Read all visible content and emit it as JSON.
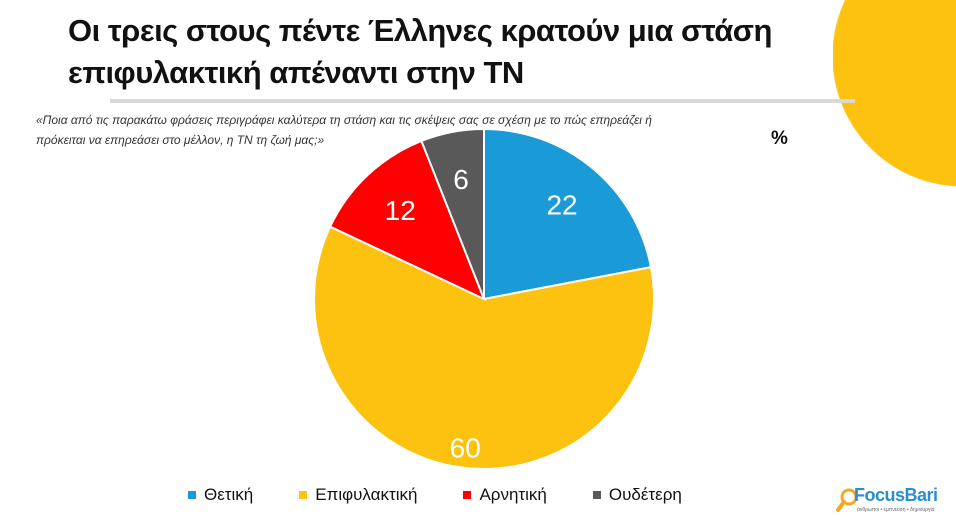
{
  "title_line1": "Οι τρεις στους πέντε Έλληνες κρατούν μια στάση",
  "title_line2": "επιφυλακτική απέναντι στην ΤΝ",
  "question_line1": "«Ποια από τις παρακάτω φράσεις περιγράφει καλύτερα τη στάση και τις σκέψεις σας σε σχέση με το πώς επηρεάζει ή",
  "question_line2": "πρόκειται να επηρεάσει στο μέλλον, η ΤΝ τη ζωή μας;»",
  "unit": "%",
  "logo": {
    "name": "FocusBari",
    "tagline": "άνθρωποι • έμπνευση • δημιουργία"
  },
  "chart_data": {
    "type": "pie",
    "title": "Οι τρεις στους πέντε Έλληνες κρατούν μια στάση επιφυλακτική απέναντι στην ΤΝ",
    "categories": [
      "Θετική",
      "Επιφυλακτική",
      "Αρνητική",
      "Ουδέτερη"
    ],
    "values": [
      22,
      60,
      12,
      6
    ],
    "colors": [
      "#1A9AD7",
      "#FDC20F",
      "#FF0000",
      "#595959"
    ],
    "start": "top",
    "direction": "clockwise",
    "legend": "bottom"
  }
}
